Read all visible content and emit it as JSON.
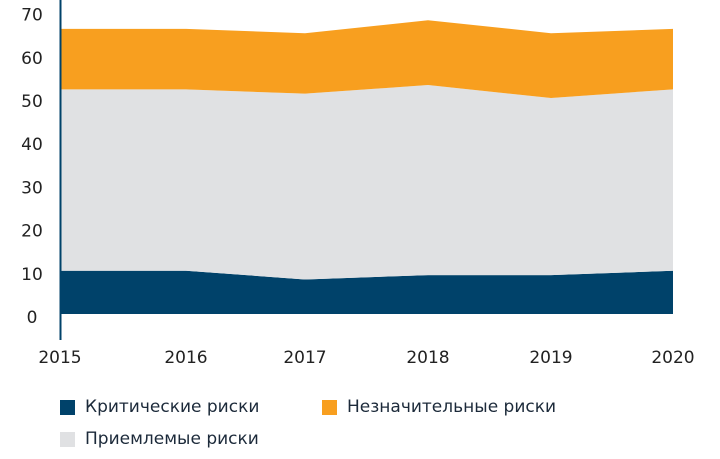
{
  "chart_data": {
    "type": "area",
    "stacked": true,
    "x": [
      "2015",
      "2016",
      "2017",
      "2018",
      "2019",
      "2020"
    ],
    "ylim": [
      0,
      70
    ],
    "yticks": [
      "0",
      "10",
      "20",
      "30",
      "40",
      "50",
      "60",
      "70"
    ],
    "grid": false,
    "legend_position": "bottom",
    "series": [
      {
        "name": "Критические риски",
        "values": [
          10,
          10,
          8,
          9,
          9,
          10
        ],
        "color": "#00426A"
      },
      {
        "name": "Приемлемые риски",
        "values": [
          42,
          42,
          43,
          44,
          41,
          42
        ],
        "color": "#E0E1E3"
      },
      {
        "name": "Незначительные риски",
        "values": [
          14,
          14,
          14,
          15,
          15,
          14
        ],
        "color": "#F89F1F"
      }
    ],
    "axis_color": "#00426A"
  }
}
